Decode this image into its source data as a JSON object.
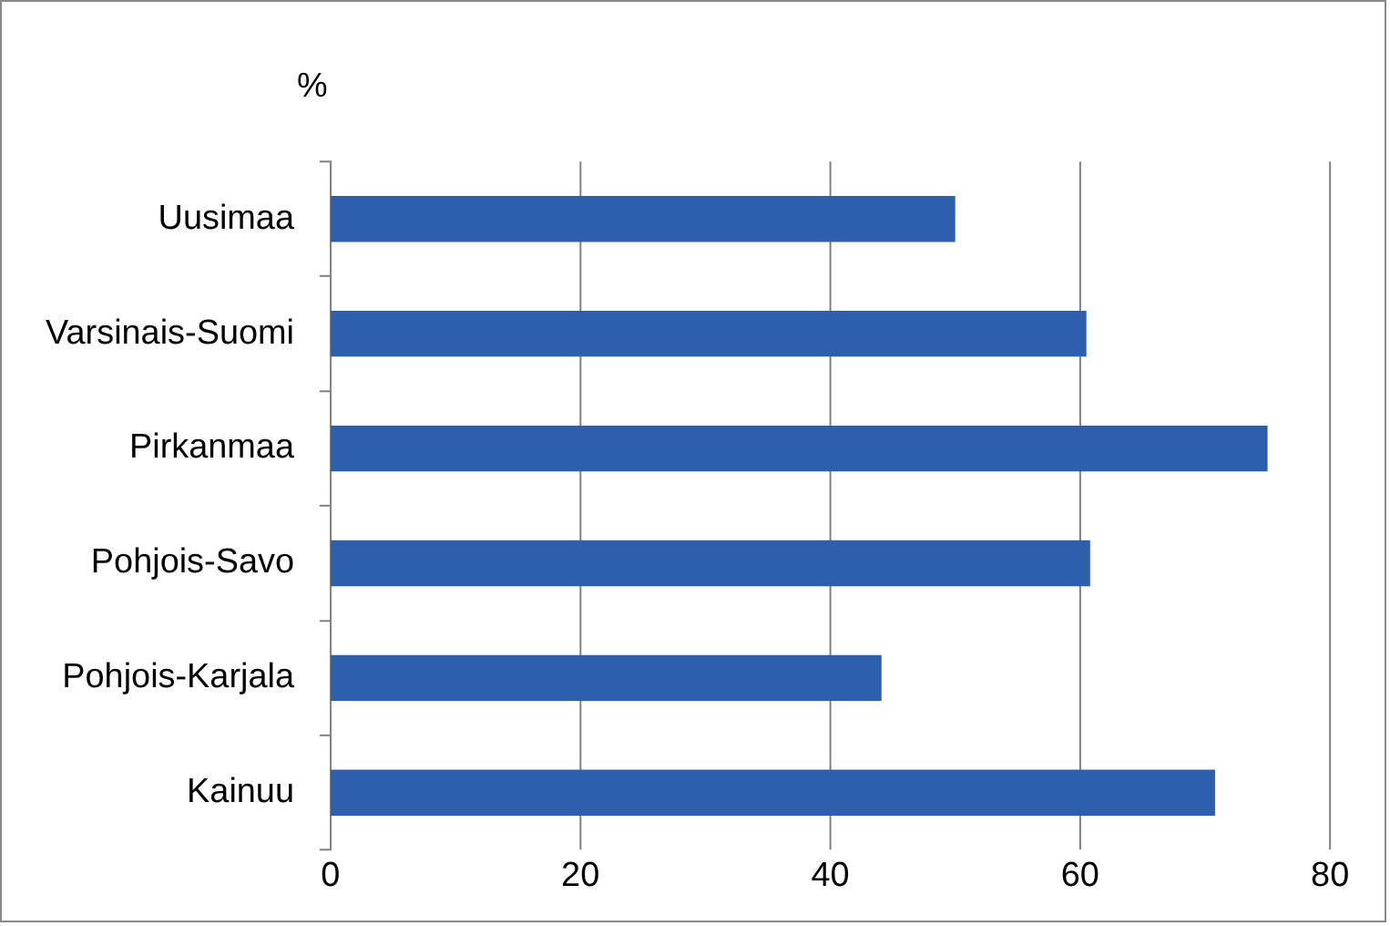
{
  "chart_data": {
    "type": "bar",
    "orientation": "horizontal",
    "xlabel": "%",
    "categories": [
      "Uusimaa",
      "Varsinais-Suomi",
      "Pirkanmaa",
      "Pohjois-Savo",
      "Pohjois-Karjala",
      "Kainuu"
    ],
    "values": [
      50,
      60.5,
      75,
      60.8,
      44.1,
      70.8
    ],
    "color": "#2e5fac",
    "xlim": [
      0,
      80
    ],
    "xticks": [
      0,
      20,
      40,
      60,
      80
    ],
    "grid": "x",
    "legend": false
  }
}
